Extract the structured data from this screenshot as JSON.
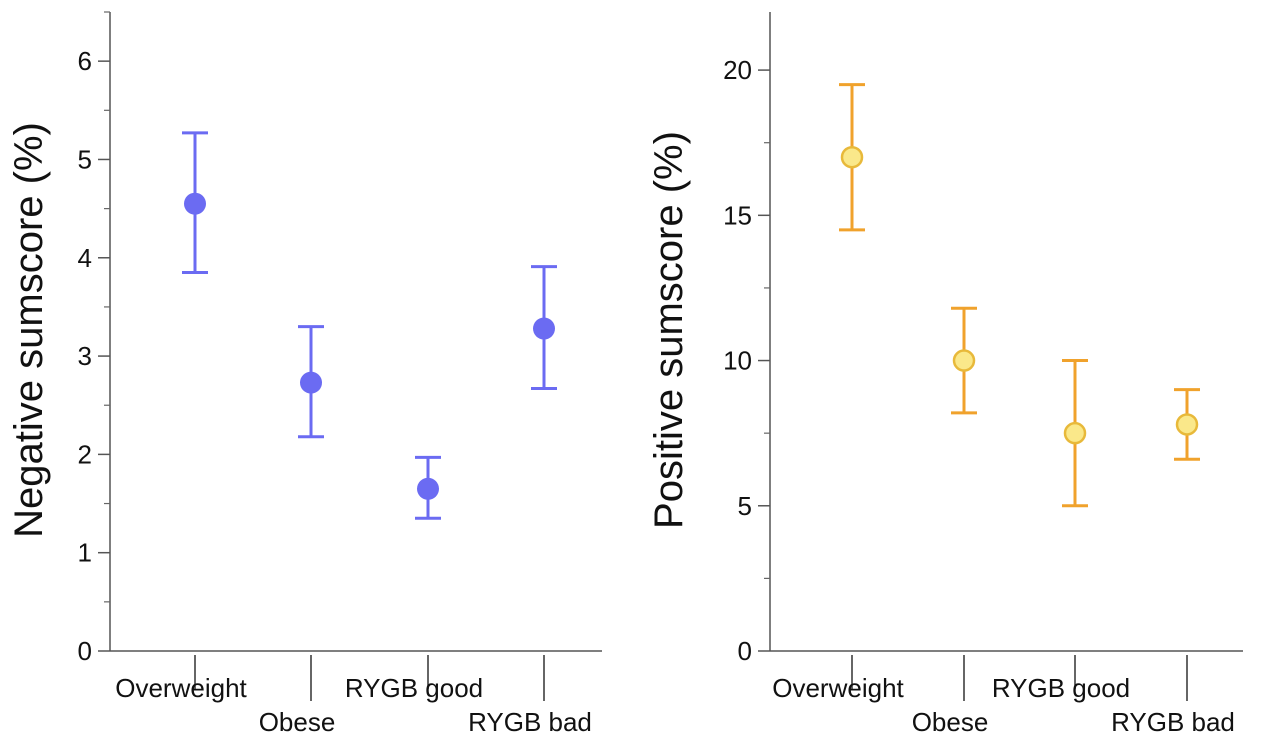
{
  "chart_data": [
    {
      "type": "scatter",
      "error_bars": true,
      "ylabel": "Negative sumscore (%)",
      "ylim": [
        0,
        6.5
      ],
      "yticks": [
        0,
        1,
        2,
        3,
        4,
        5,
        6
      ],
      "categories": [
        "Overweight",
        "Obese",
        "RYGB good",
        "RYGB bad"
      ],
      "series": [
        {
          "values": [
            4.55,
            2.73,
            1.65,
            3.28
          ],
          "lower": [
            3.85,
            2.18,
            1.35,
            2.67
          ],
          "upper": [
            5.27,
            3.3,
            1.97,
            3.91
          ]
        }
      ],
      "colors": {
        "marker": "#6B6BF2",
        "errorbar": "#6B6BF2"
      },
      "marker_style": "filled circle"
    },
    {
      "type": "scatter",
      "error_bars": true,
      "ylabel": "Positive sumscore (%)",
      "ylim": [
        0,
        22
      ],
      "yticks": [
        0,
        5,
        10,
        15,
        20
      ],
      "categories": [
        "Overweight",
        "Obese",
        "RYGB good",
        "RYGB bad"
      ],
      "series": [
        {
          "values": [
            17.0,
            10.0,
            7.5,
            7.8
          ],
          "lower": [
            14.5,
            8.2,
            5.0,
            6.6
          ],
          "upper": [
            19.5,
            11.8,
            10.0,
            9.0
          ]
        }
      ],
      "colors": {
        "marker": "#FAE88A",
        "marker_edge": "#E8B93A",
        "errorbar": "#F0A22C"
      },
      "marker_style": "light filled circle"
    }
  ]
}
